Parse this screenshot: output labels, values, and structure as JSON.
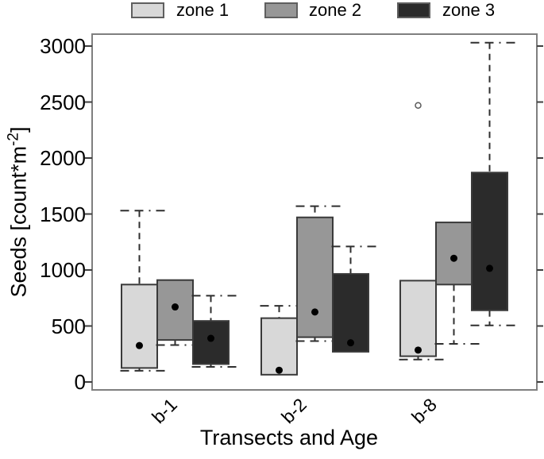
{
  "chart_data": {
    "type": "grouped_boxplot",
    "title": "",
    "xlabel": "Transects and Age",
    "ylabel": {
      "prefix": "Seeds [count*m",
      "sup": "-2",
      "suffix": "]"
    },
    "ylim": [
      0,
      3000
    ],
    "yticks": [
      0,
      500,
      1000,
      1500,
      2000,
      2500,
      3000
    ],
    "categories": [
      "b-1",
      "b-2",
      "b-8"
    ],
    "grid": false,
    "legend_position": "top-center",
    "colors": {
      "zone1_fill": "#d8d8d8",
      "zone2_fill": "#979797",
      "zone3_fill": "#2b2b2b",
      "box_border": "#3a3a3a",
      "whisker": "#2f2f2f",
      "frame": "#7f7f7f",
      "tick": "#3f3f3f",
      "mean_dot": "#000000",
      "outlier_stroke": "#5a5a5a"
    },
    "legend": [
      {
        "label": "zone 1",
        "color": "#d8d8d8"
      },
      {
        "label": "zone 2",
        "color": "#979797"
      },
      {
        "label": "zone 3",
        "color": "#2b2b2b"
      }
    ],
    "series": [
      {
        "name": "zone 1",
        "color": "#d8d8d8",
        "boxes": [
          {
            "category": "b-1",
            "q1": 125,
            "q3": 870,
            "whisker_low": 100,
            "whisker_high": 1530,
            "mean": 325,
            "outliers": []
          },
          {
            "category": "b-2",
            "q1": 65,
            "q3": 570,
            "whisker_low": null,
            "whisker_high": 680,
            "mean": 105,
            "outliers": []
          },
          {
            "category": "b-8",
            "q1": 230,
            "q3": 905,
            "whisker_low": 200,
            "whisker_high": null,
            "mean": 285,
            "outliers": [
              2470
            ]
          }
        ]
      },
      {
        "name": "zone 2",
        "color": "#979797",
        "boxes": [
          {
            "category": "b-1",
            "q1": 375,
            "q3": 910,
            "whisker_low": 330,
            "whisker_high": null,
            "mean": 670,
            "outliers": []
          },
          {
            "category": "b-2",
            "q1": 400,
            "q3": 1470,
            "whisker_low": 365,
            "whisker_high": 1570,
            "mean": 625,
            "outliers": []
          },
          {
            "category": "b-8",
            "q1": 870,
            "q3": 1425,
            "whisker_low": 340,
            "whisker_high": null,
            "mean": 1105,
            "outliers": []
          }
        ]
      },
      {
        "name": "zone 3",
        "color": "#2b2b2b",
        "boxes": [
          {
            "category": "b-1",
            "q1": 160,
            "q3": 545,
            "whisker_low": 135,
            "whisker_high": 770,
            "mean": 390,
            "outliers": []
          },
          {
            "category": "b-2",
            "q1": 270,
            "q3": 965,
            "whisker_low": null,
            "whisker_high": 1210,
            "mean": 350,
            "outliers": []
          },
          {
            "category": "b-8",
            "q1": 640,
            "q3": 1870,
            "whisker_low": 505,
            "whisker_high": 3030,
            "mean": 1015,
            "outliers": []
          }
        ]
      }
    ]
  }
}
